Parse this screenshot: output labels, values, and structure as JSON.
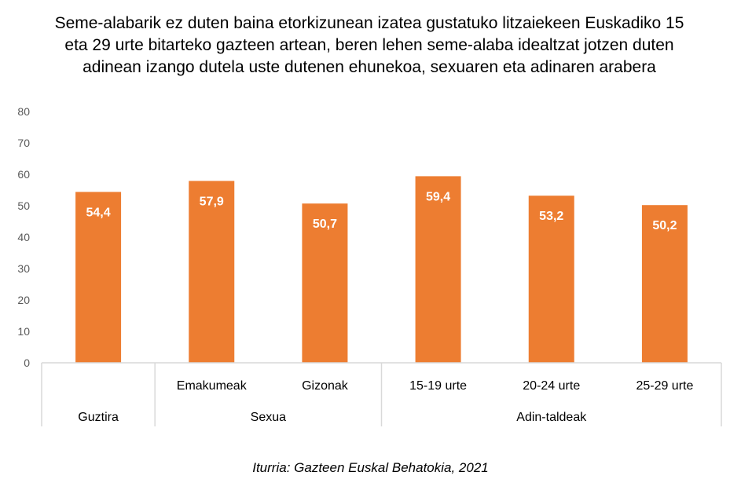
{
  "chart_data": {
    "type": "bar",
    "title": "Seme-alabarik ez duten baina etorkizunean izatea gustatuko litzaiekeen Euskadiko 15 eta 29 urte bitarteko gazteen artean, beren lehen seme-alaba idealtzat jotzen duten adinean izango dutela uste dutenen ehunekoa, sexuaren eta adinaren arabera",
    "categories": [
      "",
      "Emakumeak",
      "Gizonak",
      "15-19 urte",
      "20-24 urte",
      "25-29 urte"
    ],
    "groups": [
      {
        "label": "Guztira",
        "count": 1
      },
      {
        "label": "Sexua",
        "count": 2
      },
      {
        "label": "Adin-taldeak",
        "count": 3
      }
    ],
    "values": [
      54.4,
      57.9,
      50.7,
      59.4,
      53.2,
      50.2
    ],
    "data_labels": [
      "54,4",
      "57,9",
      "50,7",
      "59,4",
      "53,2",
      "50,2"
    ],
    "ylim": [
      0,
      80
    ],
    "yticks": [
      0,
      10,
      20,
      30,
      40,
      50,
      60,
      70,
      80
    ],
    "grid": false,
    "bar_color": "#ED7D31",
    "xlabel": "",
    "ylabel": ""
  },
  "source": "Iturria: Gazteen Euskal Behatokia, 2021"
}
